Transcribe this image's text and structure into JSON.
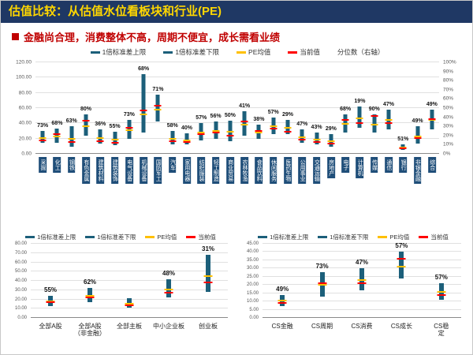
{
  "banner": {
    "title": "估值比较：从估值水位看板块和行业(PE)"
  },
  "subtitle": "金融尚合理，消费整体不高，周期不便宜，成长需看业绩",
  "colors": {
    "banner_bg": "#1F3864",
    "banner_text": "#FFD700",
    "subtitle": "#C00000",
    "bar": "#1C5F7A",
    "mean": "#FFC000",
    "current": "#FF0000",
    "label_box": "#1F4E79"
  },
  "chart_data": [
    {
      "type": "range",
      "title": "行业PE估值区间与分位数",
      "legend": [
        "1倍标准差上限",
        "1倍标准差下限",
        "PE均值",
        "当前值",
        "分位数（右轴）"
      ],
      "categories": [
        "采掘",
        "化工",
        "钢铁",
        "有色金属",
        "建筑材料",
        "建筑装饰",
        "电气设备",
        "机械设备",
        "国防军工",
        "汽车",
        "家用电器",
        "纺织服装",
        "轻工制造",
        "商业贸易",
        "农林牧渔",
        "食品饮料",
        "休闲服务",
        "医药生物",
        "公用事业",
        "交通运输",
        "房地产",
        "电子",
        "计算机",
        "传媒",
        "通信",
        "银行",
        "非银金融",
        "综合"
      ],
      "low": [
        14,
        15,
        9,
        24,
        13,
        11,
        20,
        28,
        42,
        12,
        12,
        18,
        20,
        17,
        24,
        20,
        26,
        26,
        14,
        12,
        9,
        28,
        34,
        28,
        32,
        5,
        13,
        32
      ],
      "high": [
        30,
        33,
        36,
        52,
        32,
        29,
        44,
        105,
        78,
        30,
        27,
        40,
        42,
        43,
        56,
        38,
        48,
        44,
        32,
        28,
        26,
        52,
        62,
        52,
        58,
        12,
        36,
        58
      ],
      "mean": [
        21,
        23,
        20,
        36,
        21,
        19,
        31,
        52,
        58,
        20,
        18,
        28,
        30,
        29,
        38,
        28,
        36,
        34,
        22,
        19,
        17,
        39,
        47,
        38,
        44,
        8,
        23,
        44
      ],
      "current": [
        18,
        26,
        16,
        43,
        17,
        15,
        34,
        57,
        63,
        17,
        16,
        26,
        28,
        24,
        42,
        30,
        33,
        29,
        19,
        16,
        13,
        44,
        40,
        50,
        40,
        7,
        21,
        46
      ],
      "percentile": [
        "73%",
        "68%",
        "63%",
        "80%",
        "36%",
        "55%",
        "73%",
        "68%",
        "71%",
        "58%",
        "40%",
        "57%",
        "56%",
        "50%",
        "41%",
        "38%",
        "57%",
        "29%",
        "47%",
        "43%",
        "29%",
        "68%",
        "19%",
        "90%",
        "47%",
        "51%",
        "49%",
        "49%"
      ],
      "ylim": [
        0,
        120
      ],
      "ytick_step": 20,
      "right_axis": {
        "min": 0,
        "max": 100,
        "step": 10,
        "suffix": "%"
      }
    },
    {
      "type": "range",
      "title": "板块PE估值区间与分位数",
      "legend": [
        "1倍标准差上限",
        "1倍标准差下限",
        "PE均值",
        "当前值"
      ],
      "categories": [
        "全部A股",
        "全部A股\n（非金融）",
        "全部主板",
        "中小企业板",
        "创业板"
      ],
      "low": [
        13,
        17,
        11,
        22,
        28
      ],
      "high": [
        24,
        32,
        21,
        42,
        68
      ],
      "mean": [
        18,
        24,
        15,
        31,
        45
      ],
      "current": [
        17,
        22,
        14,
        27,
        38
      ],
      "percentile": [
        "55%",
        "62%",
        "",
        "48%",
        "31%"
      ],
      "ylim": [
        0,
        80
      ],
      "ytick_step": 10
    },
    {
      "type": "range",
      "title": "风格板块PE估值区间与分位数",
      "legend": [
        "1倍标准差上限",
        "1倍标准差下限",
        "PE均值",
        "当前值"
      ],
      "categories": [
        "CS金融",
        "CS周期",
        "CS消费",
        "CS成长",
        "CS稳定"
      ],
      "low": [
        7,
        13,
        17,
        24,
        11
      ],
      "high": [
        14,
        28,
        30,
        40,
        21
      ],
      "mean": [
        10.5,
        20,
        23,
        31,
        16
      ],
      "current": [
        9,
        21,
        21,
        36,
        14
      ],
      "percentile": [
        "49%",
        "73%",
        "47%",
        "57%",
        "57%"
      ],
      "ylim": [
        0,
        45
      ],
      "ytick_step": 5
    }
  ]
}
